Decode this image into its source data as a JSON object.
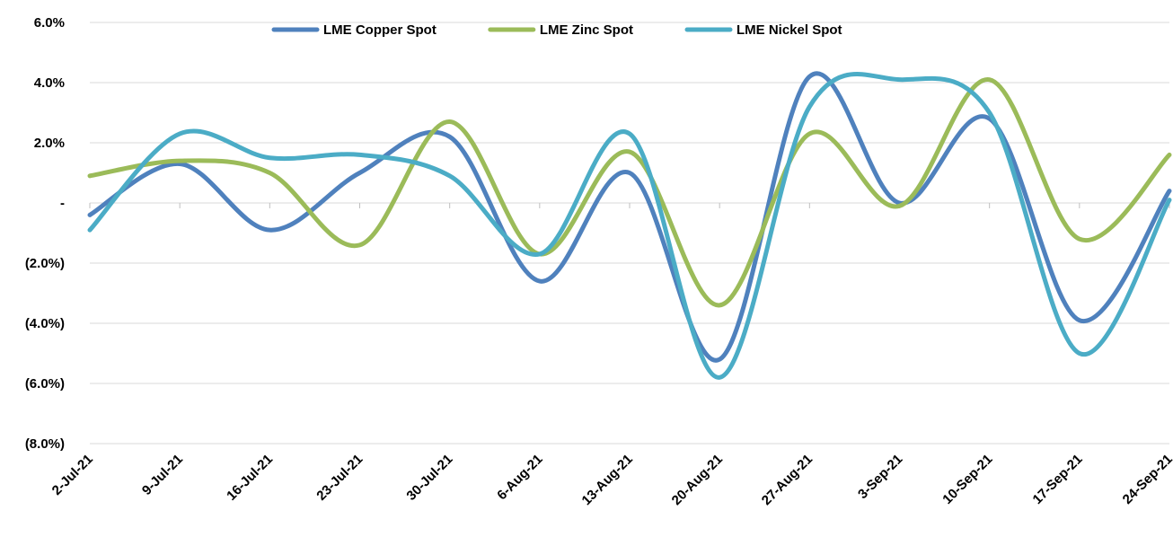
{
  "chart_data": {
    "type": "line",
    "title": "",
    "xlabel": "",
    "ylabel": "",
    "categories": [
      "2-Jul-21",
      "9-Jul-21",
      "16-Jul-21",
      "23-Jul-21",
      "30-Jul-21",
      "6-Aug-21",
      "13-Aug-21",
      "20-Aug-21",
      "27-Aug-21",
      "3-Sep-21",
      "10-Sep-21",
      "17-Sep-21",
      "24-Sep-21"
    ],
    "y_ticks": [
      {
        "value": 6,
        "label": "6.0%"
      },
      {
        "value": 4,
        "label": "4.0%"
      },
      {
        "value": 2,
        "label": "2.0%"
      },
      {
        "value": 0,
        "label": "-"
      },
      {
        "value": -2,
        "label": "(2.0%)"
      },
      {
        "value": -4,
        "label": "(4.0%)"
      },
      {
        "value": -6,
        "label": "(6.0%)"
      },
      {
        "value": -8,
        "label": "(8.0%)"
      }
    ],
    "ylim": [
      -8,
      6
    ],
    "grid": true,
    "smooth": true,
    "legend_position": "top",
    "series": [
      {
        "name": "LME Copper Spot",
        "color": "#4f81bd",
        "values": [
          -0.4,
          1.3,
          -0.9,
          1.0,
          2.2,
          -2.6,
          1.0,
          -5.2,
          4.2,
          0.0,
          2.8,
          -3.9,
          0.4
        ]
      },
      {
        "name": "LME Zinc Spot",
        "color": "#9bbb59",
        "values": [
          0.9,
          1.4,
          1.0,
          -1.4,
          2.7,
          -1.7,
          1.7,
          -3.4,
          2.3,
          -0.1,
          4.1,
          -1.2,
          1.6
        ]
      },
      {
        "name": "LME Nickel Spot",
        "color": "#4bacc6",
        "values": [
          -0.9,
          2.3,
          1.5,
          1.6,
          0.9,
          -1.7,
          2.3,
          -5.8,
          3.2,
          4.1,
          3.0,
          -5.0,
          0.1
        ]
      }
    ]
  }
}
